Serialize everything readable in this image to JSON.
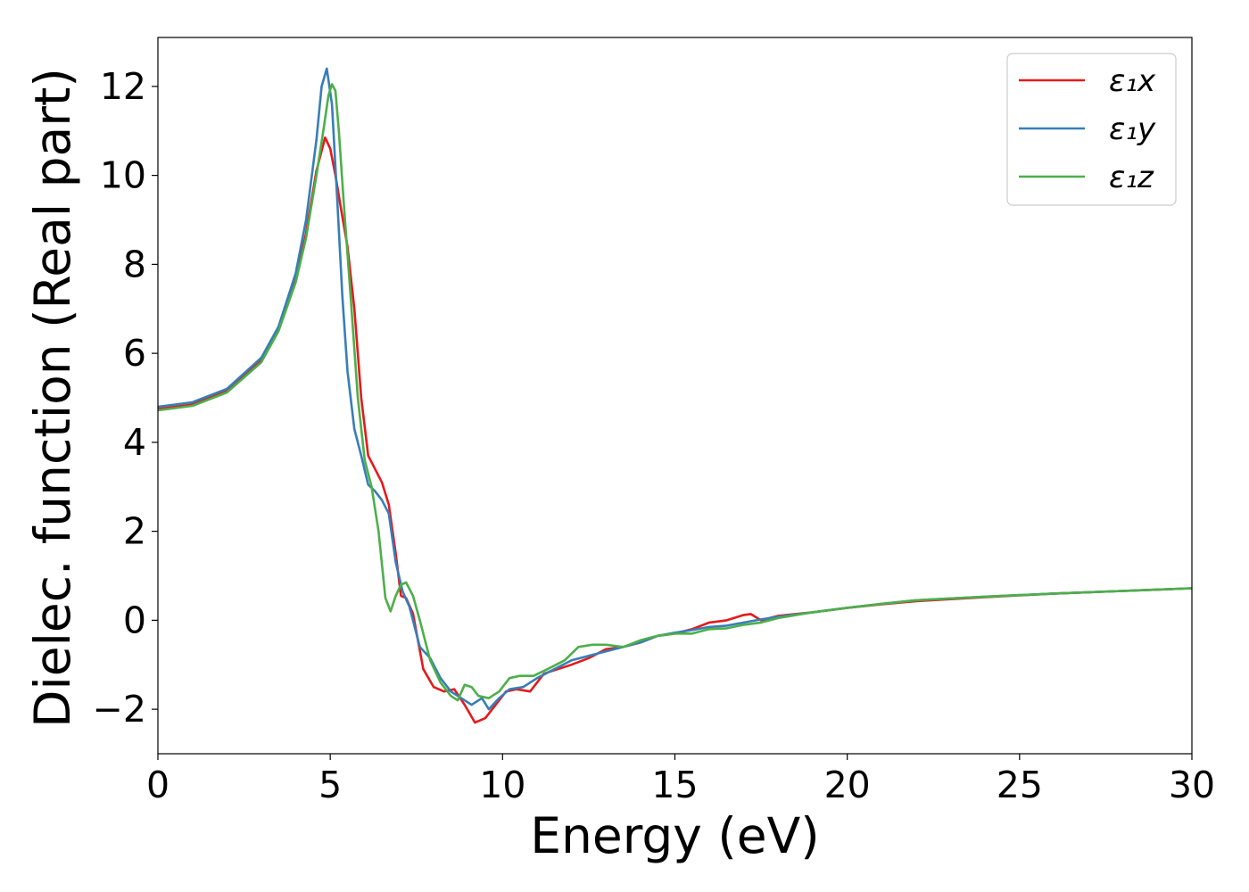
{
  "chart_data": {
    "type": "line",
    "title": "",
    "xlabel": "Energy (eV)",
    "ylabel": "Dielec. function (Real part)",
    "xlim": [
      0,
      30
    ],
    "ylim": [
      -3,
      13.1
    ],
    "xticks": [
      0,
      5,
      10,
      15,
      20,
      25,
      30
    ],
    "yticks": [
      -2,
      0,
      2,
      4,
      6,
      8,
      10,
      12
    ],
    "ytick_labels": [
      "−2",
      "0",
      "2",
      "4",
      "6",
      "8",
      "10",
      "12"
    ],
    "grid": false,
    "legend_position": "top-right",
    "series": [
      {
        "name": "ε₁x",
        "color": "#e41a1c",
        "x": [
          0,
          1,
          2,
          3,
          3.5,
          4,
          4.3,
          4.6,
          4.85,
          5.0,
          5.15,
          5.3,
          5.5,
          5.7,
          5.9,
          6.1,
          6.3,
          6.5,
          6.7,
          6.9,
          7.05,
          7.2,
          7.4,
          7.7,
          8.0,
          8.3,
          8.6,
          8.9,
          9.2,
          9.5,
          9.8,
          10.1,
          10.4,
          10.8,
          11.2,
          11.6,
          12.0,
          12.5,
          13.0,
          13.5,
          14.0,
          14.5,
          15.0,
          15.5,
          16.0,
          16.5,
          17.0,
          17.2,
          17.5,
          18.0,
          19.0,
          20.0,
          21.0,
          22.0,
          24.0,
          26.0,
          28.0,
          30.0
        ],
        "y": [
          4.75,
          4.85,
          5.15,
          5.85,
          6.55,
          7.65,
          8.7,
          10.1,
          10.85,
          10.6,
          10.0,
          9.3,
          8.4,
          7.0,
          5.0,
          3.7,
          3.4,
          3.1,
          2.6,
          1.5,
          0.55,
          0.5,
          0.15,
          -1.1,
          -1.5,
          -1.6,
          -1.55,
          -1.9,
          -2.3,
          -2.2,
          -1.9,
          -1.6,
          -1.55,
          -1.6,
          -1.2,
          -1.1,
          -1.0,
          -0.85,
          -0.65,
          -0.6,
          -0.5,
          -0.35,
          -0.3,
          -0.2,
          -0.05,
          0.0,
          0.12,
          0.14,
          0.0,
          0.1,
          0.18,
          0.28,
          0.36,
          0.43,
          0.52,
          0.6,
          0.66,
          0.72
        ]
      },
      {
        "name": "ε₁y",
        "color": "#377eb8",
        "x": [
          0,
          1,
          2,
          3,
          3.5,
          4,
          4.3,
          4.6,
          4.75,
          4.9,
          5.05,
          5.2,
          5.35,
          5.5,
          5.7,
          5.9,
          6.1,
          6.3,
          6.5,
          6.7,
          6.9,
          7.1,
          7.3,
          7.6,
          7.9,
          8.2,
          8.5,
          8.8,
          9.1,
          9.4,
          9.6,
          9.9,
          10.2,
          10.6,
          11.0,
          11.5,
          12.0,
          12.5,
          13.0,
          13.5,
          14.0,
          14.5,
          15.0,
          15.5,
          16.0,
          16.5,
          17.0,
          17.5,
          18.0,
          19.0,
          20.0,
          21.0,
          22.0,
          24.0,
          26.0,
          28.0,
          30.0
        ],
        "y": [
          4.8,
          4.9,
          5.2,
          5.9,
          6.6,
          7.8,
          9.0,
          10.8,
          12.0,
          12.4,
          11.6,
          9.5,
          7.3,
          5.6,
          4.3,
          3.7,
          3.05,
          2.9,
          2.7,
          2.4,
          1.3,
          0.65,
          0.3,
          -0.6,
          -0.85,
          -1.3,
          -1.6,
          -1.75,
          -1.9,
          -1.75,
          -2.0,
          -1.75,
          -1.55,
          -1.5,
          -1.3,
          -1.1,
          -0.9,
          -0.8,
          -0.7,
          -0.6,
          -0.5,
          -0.35,
          -0.28,
          -0.22,
          -0.15,
          -0.12,
          -0.05,
          0.02,
          0.08,
          0.18,
          0.28,
          0.37,
          0.45,
          0.53,
          0.6,
          0.66,
          0.72
        ]
      },
      {
        "name": "ε₁z",
        "color": "#4daf4a",
        "x": [
          0,
          1,
          2,
          3,
          3.5,
          4,
          4.3,
          4.6,
          4.8,
          4.95,
          5.05,
          5.15,
          5.25,
          5.4,
          5.6,
          5.8,
          6.0,
          6.2,
          6.4,
          6.6,
          6.75,
          6.9,
          7.05,
          7.2,
          7.4,
          7.6,
          7.9,
          8.2,
          8.5,
          8.7,
          8.9,
          9.1,
          9.3,
          9.6,
          9.9,
          10.2,
          10.5,
          10.9,
          11.3,
          11.8,
          12.2,
          12.6,
          13.0,
          13.5,
          14.0,
          14.5,
          15.0,
          15.5,
          16.0,
          16.5,
          17.0,
          17.5,
          18.0,
          19.0,
          20.0,
          21.0,
          22.0,
          24.0,
          26.0,
          28.0,
          30.0
        ],
        "y": [
          4.72,
          4.82,
          5.12,
          5.8,
          6.5,
          7.6,
          8.6,
          10.0,
          11.0,
          11.8,
          12.05,
          11.9,
          11.0,
          9.3,
          7.2,
          5.0,
          3.6,
          3.0,
          2.0,
          0.5,
          0.2,
          0.55,
          0.8,
          0.85,
          0.55,
          0.0,
          -0.9,
          -1.4,
          -1.7,
          -1.8,
          -1.45,
          -1.5,
          -1.7,
          -1.75,
          -1.6,
          -1.3,
          -1.25,
          -1.25,
          -1.1,
          -0.9,
          -0.6,
          -0.55,
          -0.55,
          -0.6,
          -0.45,
          -0.35,
          -0.3,
          -0.3,
          -0.2,
          -0.18,
          -0.1,
          -0.05,
          0.05,
          0.18,
          0.28,
          0.37,
          0.45,
          0.53,
          0.6,
          0.66,
          0.72
        ]
      }
    ]
  }
}
